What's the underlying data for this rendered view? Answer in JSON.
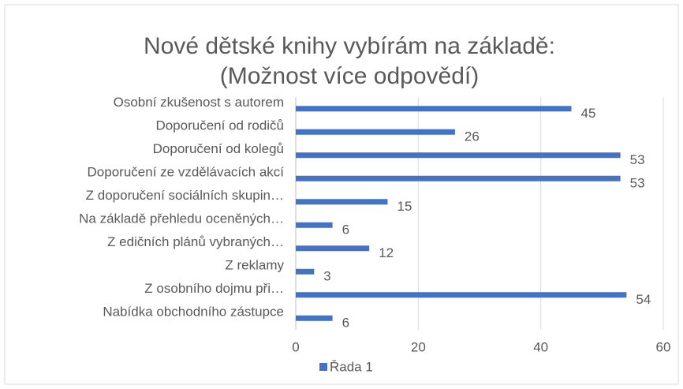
{
  "chart_data": {
    "type": "bar",
    "orientation": "horizontal",
    "title": "Nové dětské knihy vybírám na základě: (Možnost více odpovědí)",
    "categories": [
      "Osobní zkušenost s autorem",
      "Doporučení od rodičů",
      "Doporučení od kolegů",
      "Doporučení ze vzdělávacích akcí",
      "Z doporučení sociálních skupin…",
      "Na základě přehledu oceněných…",
      "Z edičních plánů vybraných…",
      "Z reklamy",
      "Z osobního dojmu při…",
      "Nabídka obchodního zástupce"
    ],
    "series": [
      {
        "name": "Řada 1",
        "color": "#4472c4",
        "values": [
          45,
          26,
          53,
          53,
          15,
          6,
          12,
          3,
          54,
          6
        ]
      }
    ],
    "xlim": [
      0,
      60
    ],
    "xticks": [
      0,
      20,
      40,
      60
    ],
    "grid": true,
    "legend": "bottom"
  }
}
